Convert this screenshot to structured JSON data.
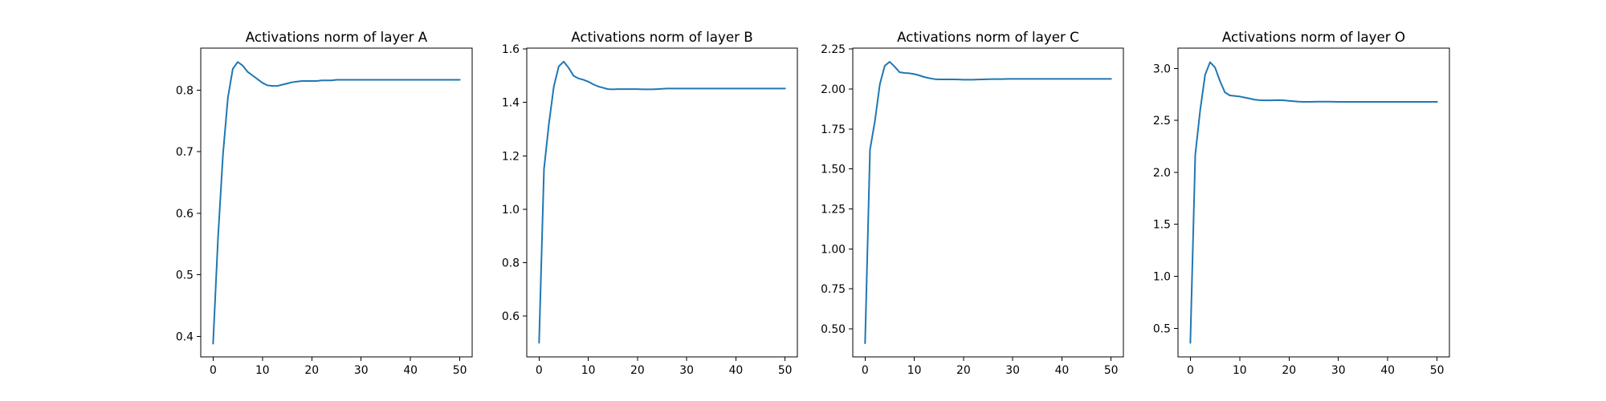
{
  "colors": {
    "series": "#1f77b4",
    "axes": "#000000",
    "background": "#ffffff"
  },
  "chart_data": [
    {
      "type": "line",
      "title": "Activations norm of layer A",
      "xlabel": "",
      "ylabel": "",
      "xlim": [
        -2.5,
        52.5
      ],
      "ylim": [
        0.3665,
        0.8685
      ],
      "xticks": [
        0,
        10,
        20,
        30,
        40,
        50
      ],
      "xtick_labels": [
        "0",
        "10",
        "20",
        "30",
        "40",
        "50"
      ],
      "yticks": [
        0.4,
        0.5,
        0.6,
        0.7,
        0.8
      ],
      "ytick_labels": [
        "0.4",
        "0.5",
        "0.6",
        "0.7",
        "0.8"
      ],
      "grid": false,
      "series": [
        {
          "x": [
            0,
            1,
            2,
            3,
            4,
            5,
            6,
            7,
            8,
            9,
            10,
            11,
            12,
            13,
            14,
            15,
            16,
            17,
            18,
            19,
            20,
            21,
            22,
            23,
            24,
            25,
            26,
            27,
            28,
            29,
            30,
            31,
            32,
            33,
            34,
            35,
            36,
            37,
            38,
            39,
            40,
            41,
            42,
            43,
            44,
            45,
            46,
            47,
            48,
            49,
            50
          ],
          "y": [
            0.388,
            0.56,
            0.695,
            0.788,
            0.835,
            0.846,
            0.84,
            0.83,
            0.824,
            0.818,
            0.812,
            0.808,
            0.807,
            0.807,
            0.809,
            0.811,
            0.813,
            0.814,
            0.815,
            0.815,
            0.815,
            0.815,
            0.816,
            0.816,
            0.816,
            0.817,
            0.817,
            0.817,
            0.817,
            0.817,
            0.817,
            0.817,
            0.817,
            0.817,
            0.817,
            0.817,
            0.817,
            0.817,
            0.817,
            0.817,
            0.817,
            0.817,
            0.817,
            0.817,
            0.817,
            0.817,
            0.817,
            0.817,
            0.817,
            0.817,
            0.817
          ]
        }
      ]
    },
    {
      "type": "line",
      "title": "Activations norm of layer B",
      "xlabel": "",
      "ylabel": "",
      "xlim": [
        -2.5,
        52.5
      ],
      "ylim": [
        0.447,
        1.6035
      ],
      "xticks": [
        0,
        10,
        20,
        30,
        40,
        50
      ],
      "xtick_labels": [
        "0",
        "10",
        "20",
        "30",
        "40",
        "50"
      ],
      "yticks": [
        0.6,
        0.8,
        1.0,
        1.2,
        1.4,
        1.6
      ],
      "ytick_labels": [
        "0.6",
        "0.8",
        "1.0",
        "1.2",
        "1.4",
        "1.6"
      ],
      "grid": false,
      "series": [
        {
          "x": [
            0,
            1,
            2,
            3,
            4,
            5,
            6,
            7,
            8,
            9,
            10,
            11,
            12,
            13,
            14,
            15,
            16,
            17,
            18,
            19,
            20,
            21,
            22,
            23,
            24,
            25,
            26,
            27,
            28,
            29,
            30,
            31,
            32,
            33,
            34,
            35,
            36,
            37,
            38,
            39,
            40,
            41,
            42,
            43,
            44,
            45,
            46,
            47,
            48,
            49,
            50
          ],
          "y": [
            0.5,
            1.15,
            1.32,
            1.46,
            1.535,
            1.553,
            1.53,
            1.5,
            1.49,
            1.485,
            1.478,
            1.468,
            1.46,
            1.455,
            1.45,
            1.449,
            1.45,
            1.45,
            1.45,
            1.45,
            1.45,
            1.449,
            1.449,
            1.449,
            1.45,
            1.451,
            1.452,
            1.452,
            1.452,
            1.452,
            1.452,
            1.452,
            1.452,
            1.452,
            1.452,
            1.452,
            1.452,
            1.452,
            1.452,
            1.452,
            1.452,
            1.452,
            1.452,
            1.452,
            1.452,
            1.452,
            1.452,
            1.452,
            1.452,
            1.452,
            1.452
          ]
        }
      ]
    },
    {
      "type": "line",
      "title": "Activations norm of layer C",
      "xlabel": "",
      "ylabel": "",
      "xlim": [
        -2.5,
        52.5
      ],
      "ylim": [
        0.3245,
        2.2555
      ],
      "xticks": [
        0,
        10,
        20,
        30,
        40,
        50
      ],
      "xtick_labels": [
        "0",
        "10",
        "20",
        "30",
        "40",
        "50"
      ],
      "yticks": [
        0.5,
        0.75,
        1.0,
        1.25,
        1.5,
        1.75,
        2.0,
        2.25
      ],
      "ytick_labels": [
        "0.50",
        "0.75",
        "1.00",
        "1.25",
        "1.50",
        "1.75",
        "2.00",
        "2.25"
      ],
      "grid": false,
      "series": [
        {
          "x": [
            0,
            1,
            2,
            3,
            4,
            5,
            6,
            7,
            8,
            9,
            10,
            11,
            12,
            13,
            14,
            15,
            16,
            17,
            18,
            19,
            20,
            21,
            22,
            23,
            24,
            25,
            26,
            27,
            28,
            29,
            30,
            31,
            32,
            33,
            34,
            35,
            36,
            37,
            38,
            39,
            40,
            41,
            42,
            43,
            44,
            45,
            46,
            47,
            48,
            49,
            50
          ],
          "y": [
            0.41,
            1.62,
            1.8,
            2.03,
            2.145,
            2.17,
            2.14,
            2.105,
            2.1,
            2.098,
            2.093,
            2.085,
            2.075,
            2.068,
            2.062,
            2.06,
            2.06,
            2.06,
            2.06,
            2.059,
            2.058,
            2.058,
            2.058,
            2.059,
            2.06,
            2.061,
            2.062,
            2.062,
            2.062,
            2.063,
            2.063,
            2.063,
            2.063,
            2.063,
            2.063,
            2.063,
            2.063,
            2.063,
            2.063,
            2.063,
            2.063,
            2.063,
            2.063,
            2.063,
            2.063,
            2.063,
            2.063,
            2.063,
            2.063,
            2.063,
            2.063
          ]
        }
      ]
    },
    {
      "type": "line",
      "title": "Activations norm of layer O",
      "xlabel": "",
      "ylabel": "",
      "xlim": [
        -2.5,
        52.5
      ],
      "ylim": [
        0.2245,
        3.1955
      ],
      "xticks": [
        0,
        10,
        20,
        30,
        40,
        50
      ],
      "xtick_labels": [
        "0",
        "10",
        "20",
        "30",
        "40",
        "50"
      ],
      "yticks": [
        0.5,
        1.0,
        1.5,
        2.0,
        2.5,
        3.0
      ],
      "ytick_labels": [
        "0.5",
        "1.0",
        "1.5",
        "2.0",
        "2.5",
        "3.0"
      ],
      "grid": false,
      "series": [
        {
          "x": [
            0,
            1,
            2,
            3,
            4,
            5,
            6,
            7,
            8,
            9,
            10,
            11,
            12,
            13,
            14,
            15,
            16,
            17,
            18,
            19,
            20,
            21,
            22,
            23,
            24,
            25,
            26,
            27,
            28,
            29,
            30,
            31,
            32,
            33,
            34,
            35,
            36,
            37,
            38,
            39,
            40,
            41,
            42,
            43,
            44,
            45,
            46,
            47,
            48,
            49,
            50
          ],
          "y": [
            0.36,
            2.17,
            2.6,
            2.94,
            3.06,
            3.01,
            2.88,
            2.77,
            2.74,
            2.735,
            2.73,
            2.72,
            2.71,
            2.7,
            2.695,
            2.693,
            2.693,
            2.694,
            2.695,
            2.693,
            2.688,
            2.684,
            2.68,
            2.678,
            2.678,
            2.679,
            2.68,
            2.68,
            2.68,
            2.679,
            2.678,
            2.678,
            2.678,
            2.678,
            2.678,
            2.678,
            2.678,
            2.678,
            2.678,
            2.678,
            2.678,
            2.678,
            2.678,
            2.678,
            2.678,
            2.678,
            2.678,
            2.678,
            2.678,
            2.678,
            2.678
          ]
        }
      ]
    }
  ]
}
